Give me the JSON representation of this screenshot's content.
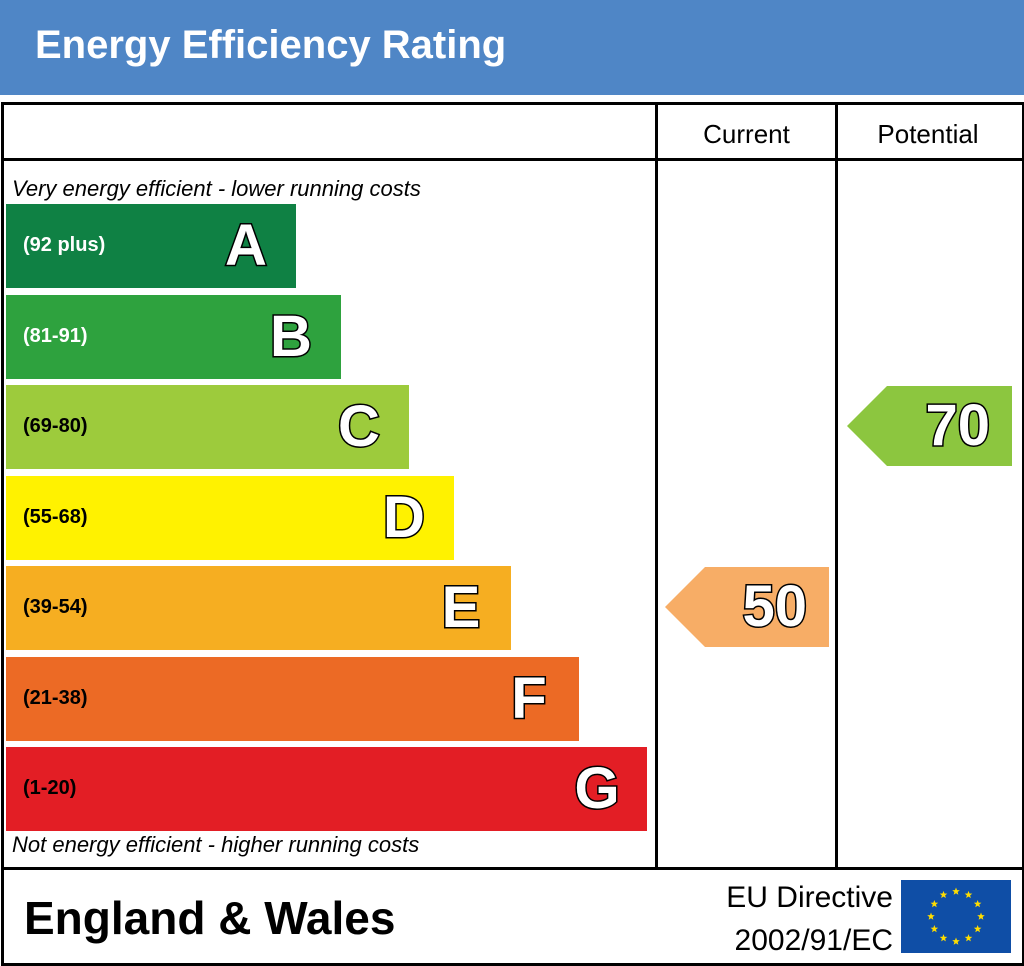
{
  "header": {
    "title": "Energy Efficiency Rating"
  },
  "columns": {
    "current": "Current",
    "potential": "Potential"
  },
  "notes": {
    "top": "Very energy efficient - lower running costs",
    "bottom": "Not energy efficient - higher running costs"
  },
  "footer": {
    "region": "England & Wales",
    "directive_line1": "EU Directive",
    "directive_line2": "2002/91/EC"
  },
  "colors": {
    "header": "#4f86c6",
    "A": "#0f8144",
    "B": "#2ea23e",
    "C": "#9dcb3c",
    "D": "#fff200",
    "E": "#f6ae21",
    "F": "#ec6a25",
    "G": "#e31e25",
    "current_arrow": "#f7ad66",
    "potential_arrow": "#8cc63f",
    "eu_flag": "#0f4ea6",
    "eu_star": "#ffdd00"
  },
  "chart_data": {
    "type": "table",
    "title": "Energy Efficiency Rating",
    "bands": [
      {
        "letter": "A",
        "range": "(92 plus)",
        "min": 92,
        "max": 100
      },
      {
        "letter": "B",
        "range": "(81-91)",
        "min": 81,
        "max": 91
      },
      {
        "letter": "C",
        "range": "(69-80)",
        "min": 69,
        "max": 80
      },
      {
        "letter": "D",
        "range": "(55-68)",
        "min": 55,
        "max": 68
      },
      {
        "letter": "E",
        "range": "(39-54)",
        "min": 39,
        "max": 54
      },
      {
        "letter": "F",
        "range": "(21-38)",
        "min": 21,
        "max": 38
      },
      {
        "letter": "G",
        "range": "(1-20)",
        "min": 1,
        "max": 20
      }
    ],
    "current": {
      "value": "50",
      "band": "E"
    },
    "potential": {
      "value": "70",
      "band": "C"
    }
  }
}
